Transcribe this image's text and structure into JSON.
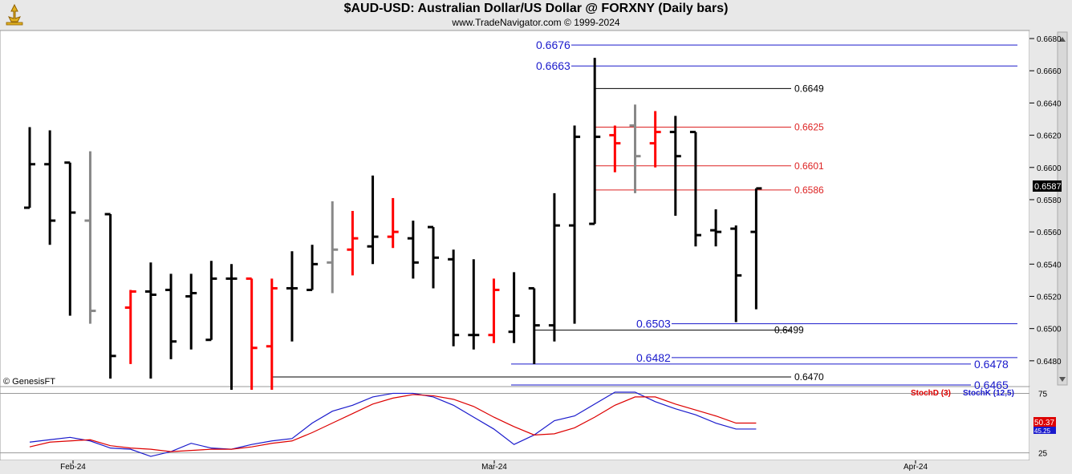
{
  "header": {
    "title": "$AUD-USD:  Australian Dollar/US Dollar @ FORXNY  (Daily bars)",
    "subtitle": "www.TradeNavigator.com © 1999-2024"
  },
  "copyright": "© GenesisFT",
  "colors": {
    "up": "#000000",
    "red": "#ff0000",
    "gray": "#888888",
    "blue_level": "#1a1acc",
    "red_level": "#dd2222",
    "black_level": "#000000"
  },
  "chart_data": [
    {
      "type": "ohlc",
      "y_range": [
        0.6464,
        0.6685
      ],
      "y_ticks": [
        "0.6480",
        "0.6500",
        "0.6520",
        "0.6540",
        "0.6560",
        "0.6580",
        "0.6600",
        "0.6620",
        "0.6640",
        "0.6660",
        "0.6680"
      ],
      "x_labels": [
        "Feb-24",
        "Mar-24",
        "Apr-24"
      ],
      "last_price": "0.6587",
      "bars": [
        {
          "o": 0.6575,
          "h": 0.6625,
          "l": 0.6575,
          "c": 0.6602,
          "color": "black"
        },
        {
          "o": 0.6602,
          "h": 0.6623,
          "l": 0.6552,
          "c": 0.6567,
          "color": "black"
        },
        {
          "o": 0.6603,
          "h": 0.6603,
          "l": 0.6508,
          "c": 0.6572,
          "color": "black"
        },
        {
          "o": 0.6567,
          "h": 0.661,
          "l": 0.6503,
          "c": 0.6511,
          "color": "gray"
        },
        {
          "o": 0.6571,
          "h": 0.6571,
          "l": 0.6469,
          "c": 0.6483,
          "color": "black"
        },
        {
          "o": 0.6513,
          "h": 0.6524,
          "l": 0.6478,
          "c": 0.6523,
          "color": "red"
        },
        {
          "o": 0.6523,
          "h": 0.6541,
          "l": 0.6469,
          "c": 0.6521,
          "color": "black"
        },
        {
          "o": 0.6524,
          "h": 0.6534,
          "l": 0.6481,
          "c": 0.6492,
          "color": "black"
        },
        {
          "o": 0.652,
          "h": 0.6534,
          "l": 0.6487,
          "c": 0.6522,
          "color": "black"
        },
        {
          "o": 0.6493,
          "h": 0.6542,
          "l": 0.6493,
          "c": 0.6531,
          "color": "black"
        },
        {
          "o": 0.6531,
          "h": 0.654,
          "l": 0.6462,
          "c": 0.6531,
          "color": "black"
        },
        {
          "o": 0.6531,
          "h": 0.6531,
          "l": 0.6462,
          "c": 0.6488,
          "color": "red"
        },
        {
          "o": 0.6489,
          "h": 0.6531,
          "l": 0.6462,
          "c": 0.6525,
          "color": "red"
        },
        {
          "o": 0.6525,
          "h": 0.6548,
          "l": 0.6492,
          "c": 0.6525,
          "color": "black"
        },
        {
          "o": 0.6524,
          "h": 0.6552,
          "l": 0.6524,
          "c": 0.654,
          "color": "black"
        },
        {
          "o": 0.6541,
          "h": 0.6579,
          "l": 0.6522,
          "c": 0.6549,
          "color": "gray"
        },
        {
          "o": 0.6549,
          "h": 0.6573,
          "l": 0.6533,
          "c": 0.6556,
          "color": "red"
        },
        {
          "o": 0.6551,
          "h": 0.6595,
          "l": 0.654,
          "c": 0.6557,
          "color": "black"
        },
        {
          "o": 0.6557,
          "h": 0.6581,
          "l": 0.655,
          "c": 0.656,
          "color": "red"
        },
        {
          "o": 0.6556,
          "h": 0.6567,
          "l": 0.6531,
          "c": 0.6541,
          "color": "black"
        },
        {
          "o": 0.6563,
          "h": 0.6563,
          "l": 0.6525,
          "c": 0.6544,
          "color": "black"
        },
        {
          "o": 0.6543,
          "h": 0.6549,
          "l": 0.6489,
          "c": 0.6496,
          "color": "black"
        },
        {
          "o": 0.6496,
          "h": 0.6543,
          "l": 0.6487,
          "c": 0.6496,
          "color": "black"
        },
        {
          "o": 0.6496,
          "h": 0.6531,
          "l": 0.6491,
          "c": 0.6524,
          "color": "red"
        },
        {
          "o": 0.6498,
          "h": 0.6535,
          "l": 0.6491,
          "c": 0.6508,
          "color": "black"
        },
        {
          "o": 0.6525,
          "h": 0.6525,
          "l": 0.6478,
          "c": 0.6502,
          "color": "black"
        },
        {
          "o": 0.6502,
          "h": 0.6584,
          "l": 0.6492,
          "c": 0.6564,
          "color": "black"
        },
        {
          "o": 0.6564,
          "h": 0.6626,
          "l": 0.6503,
          "c": 0.6619,
          "color": "black"
        },
        {
          "o": 0.6565,
          "h": 0.6668,
          "l": 0.6565,
          "c": 0.6619,
          "color": "black"
        },
        {
          "o": 0.662,
          "h": 0.6626,
          "l": 0.6597,
          "c": 0.6615,
          "color": "red"
        },
        {
          "o": 0.6626,
          "h": 0.6639,
          "l": 0.6584,
          "c": 0.6607,
          "color": "gray"
        },
        {
          "o": 0.6615,
          "h": 0.6635,
          "l": 0.66,
          "c": 0.6622,
          "color": "red"
        },
        {
          "o": 0.6622,
          "h": 0.6632,
          "l": 0.657,
          "c": 0.6607,
          "color": "black"
        },
        {
          "o": 0.6622,
          "h": 0.6622,
          "l": 0.6551,
          "c": 0.6558,
          "color": "black"
        },
        {
          "o": 0.6561,
          "h": 0.6574,
          "l": 0.6551,
          "c": 0.656,
          "color": "black"
        },
        {
          "o": 0.6562,
          "h": 0.6564,
          "l": 0.6504,
          "c": 0.6533,
          "color": "black"
        },
        {
          "o": 0.656,
          "h": 0.6587,
          "l": 0.6512,
          "c": 0.6587,
          "color": "black"
        }
      ],
      "levels": [
        {
          "value": 0.6676,
          "label": "0.6676",
          "color": "blue",
          "side": "left",
          "x_start_bar": 28
        },
        {
          "value": 0.6663,
          "label": "0.6663",
          "color": "blue",
          "side": "left",
          "x_start_bar": 28
        },
        {
          "value": 0.6649,
          "label": "0.6649",
          "color": "black",
          "side": "right",
          "x_start_bar": 28
        },
        {
          "value": 0.6625,
          "label": "0.6625",
          "color": "red",
          "side": "right",
          "x_start_bar": 28
        },
        {
          "value": 0.6601,
          "label": "0.6601",
          "color": "red",
          "side": "right",
          "x_start_bar": 28
        },
        {
          "value": 0.6586,
          "label": "0.6586",
          "color": "red",
          "side": "right",
          "x_start_bar": 28
        },
        {
          "value": 0.6503,
          "label": "0.6503",
          "color": "blue",
          "side": "left",
          "x_start_bar": 32
        },
        {
          "value": 0.6499,
          "label": "0.6499",
          "color": "black",
          "side": "right",
          "x_start_bar": 25
        },
        {
          "value": 0.6482,
          "label": "0.6482",
          "color": "blue",
          "side": "left",
          "x_start_bar": 32
        },
        {
          "value": 0.6478,
          "label": "0.6478",
          "color": "blue",
          "side": "far",
          "x_start_bar": 24
        },
        {
          "value": 0.647,
          "label": "0.6470",
          "color": "black",
          "side": "right",
          "x_start_bar": 12
        },
        {
          "value": 0.6465,
          "label": "0.6465",
          "color": "blue",
          "side": "far",
          "x_start_bar": 24
        }
      ]
    },
    {
      "type": "line",
      "y_range": [
        20,
        78
      ],
      "y_ticks": [
        "25",
        "75"
      ],
      "legend": [
        {
          "name": "StochD (3)",
          "color": "#dd0000"
        },
        {
          "name": "StochK (12,5)",
          "color": "#1a1acc"
        }
      ],
      "last_values": {
        "stochD": "50.37",
        "stochK": "45.25"
      },
      "series": [
        {
          "name": "StochK (12,5)",
          "color": "#1a1acc",
          "values": [
            34,
            36,
            38,
            35,
            29,
            28,
            22,
            26,
            33,
            29,
            28,
            32,
            35,
            37,
            50,
            60,
            65,
            72,
            75,
            75,
            72,
            65,
            55,
            45,
            32,
            40,
            52,
            56,
            66,
            76,
            76,
            68,
            62,
            57,
            50,
            45,
            45
          ]
        },
        {
          "name": "StochD (3)",
          "color": "#dd0000",
          "values": [
            30,
            34,
            35,
            36,
            31,
            29,
            28,
            26,
            27,
            28,
            28,
            30,
            33,
            35,
            42,
            50,
            58,
            66,
            71,
            74,
            73,
            70,
            64,
            55,
            47,
            40,
            41,
            46,
            55,
            65,
            72,
            72,
            66,
            61,
            56,
            50,
            50
          ]
        }
      ]
    }
  ]
}
